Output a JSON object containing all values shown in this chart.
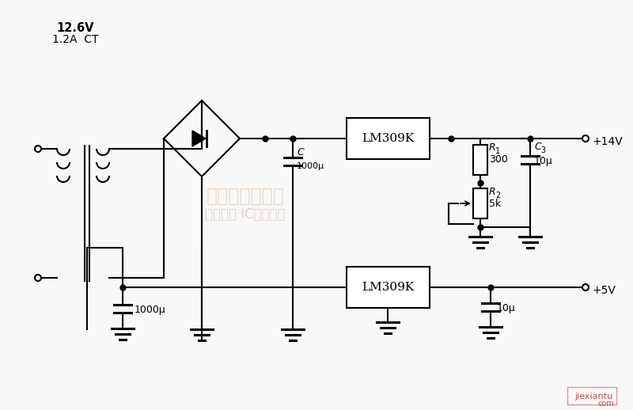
{
  "bg_color": "#f8f8f8",
  "lw": 1.5,
  "lw_thick": 2.2,
  "voltage_label": "12.6V",
  "current_label": "1.2A  CT",
  "plus14v": "+14V",
  "plus5v": "+5V",
  "R1_label": "R",
  "R1_sub": "1",
  "R1_val": "300",
  "R2_label": "R",
  "R2_sub": "2",
  "R2_val": "5k",
  "C3_label": "C",
  "C3_sub": "3",
  "C3_val": "10μ",
  "C1_label": "C",
  "C1_val": "1000μ",
  "cap_bot_val": "10μ",
  "cap_big_val": "1000μ",
  "cap_gnd2_val": "jiexiantu",
  "watermark1": "维库电子市场网",
  "watermark2": "全球最大 IC采购网站"
}
